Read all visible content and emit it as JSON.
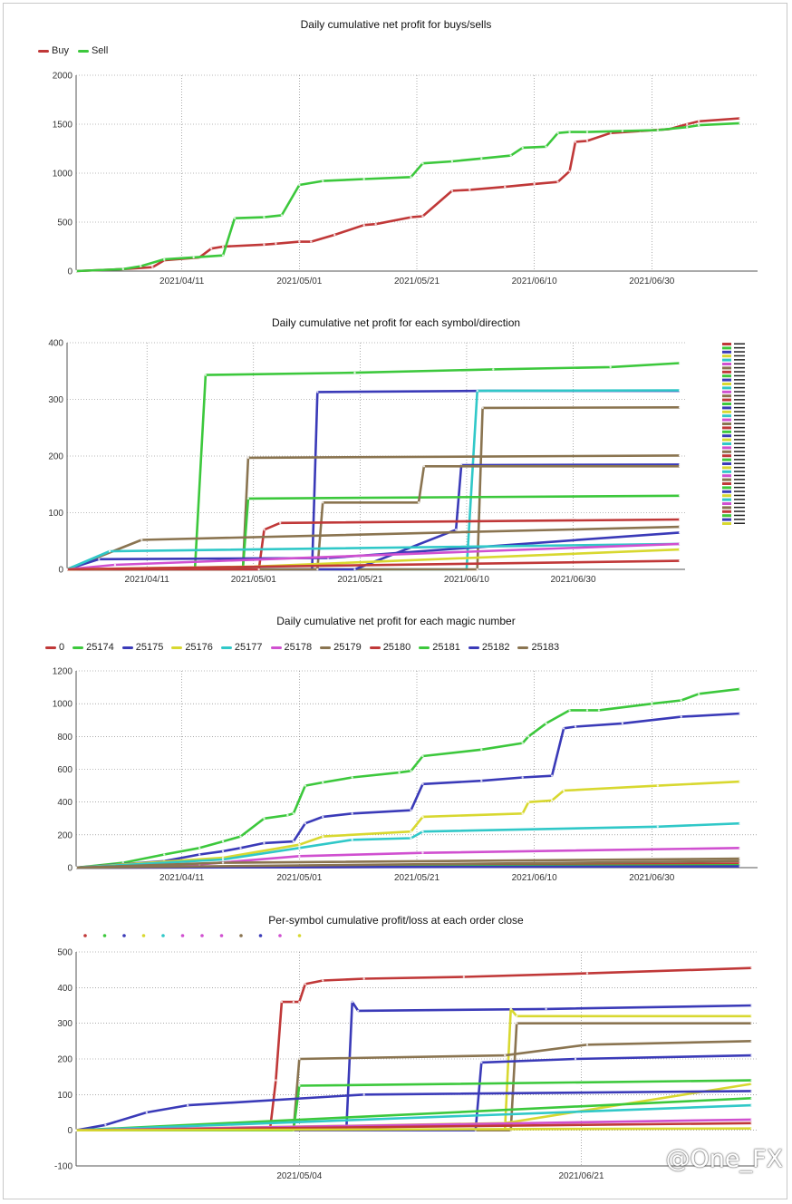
{
  "watermark": "@One_FX",
  "chart_data": [
    {
      "type": "line",
      "title": "Daily cumulative net profit for buys/sells",
      "legend_placement": "top-left",
      "grid": true,
      "xlabel": "",
      "ylabel": "",
      "x_tick_labels": [
        "2021/04/11",
        "2021/05/01",
        "2021/05/21",
        "2021/06/10",
        "2021/06/30"
      ],
      "x_range": [
        "2021/03/24",
        "2021/07/18"
      ],
      "ylim": [
        0,
        2000
      ],
      "y_ticks": [
        0,
        500,
        1000,
        1500,
        2000
      ],
      "series": [
        {
          "name": "Buy",
          "color": "#c03838",
          "x": [
            "2021/03/24",
            "2021/04/01",
            "2021/04/06",
            "2021/04/08",
            "2021/04/14",
            "2021/04/16",
            "2021/04/18",
            "2021/04/25",
            "2021/04/27",
            "2021/05/01",
            "2021/05/03",
            "2021/05/07",
            "2021/05/12",
            "2021/05/14",
            "2021/05/20",
            "2021/05/22",
            "2021/05/27",
            "2021/05/30",
            "2021/06/05",
            "2021/06/10",
            "2021/06/14",
            "2021/06/16",
            "2021/06/17",
            "2021/06/19",
            "2021/06/23",
            "2021/06/28",
            "2021/07/03",
            "2021/07/06",
            "2021/07/08",
            "2021/07/15"
          ],
          "values": [
            0,
            20,
            40,
            110,
            140,
            230,
            250,
            270,
            280,
            300,
            300,
            370,
            470,
            480,
            550,
            560,
            820,
            830,
            860,
            890,
            910,
            1020,
            1320,
            1330,
            1410,
            1430,
            1450,
            1500,
            1530,
            1560
          ]
        },
        {
          "name": "Sell",
          "color": "#3cc83c",
          "x": [
            "2021/03/24",
            "2021/04/01",
            "2021/04/04",
            "2021/04/08",
            "2021/04/13",
            "2021/04/18",
            "2021/04/20",
            "2021/04/25",
            "2021/04/28",
            "2021/05/01",
            "2021/05/05",
            "2021/05/12",
            "2021/05/20",
            "2021/05/22",
            "2021/05/27",
            "2021/06/01",
            "2021/06/06",
            "2021/06/08",
            "2021/06/12",
            "2021/06/14",
            "2021/06/16",
            "2021/06/19",
            "2021/06/25",
            "2021/07/01",
            "2021/07/06",
            "2021/07/08",
            "2021/07/15"
          ],
          "values": [
            0,
            20,
            50,
            120,
            140,
            160,
            540,
            550,
            570,
            880,
            920,
            940,
            960,
            1100,
            1120,
            1150,
            1180,
            1260,
            1270,
            1410,
            1420,
            1420,
            1430,
            1440,
            1470,
            1490,
            1510
          ]
        }
      ]
    },
    {
      "type": "line",
      "title": "Daily cumulative net profit for each symbol/direction",
      "legend_placement": "right",
      "grid": true,
      "xlabel": "",
      "ylabel": "",
      "x_tick_labels": [
        "2021/04/11",
        "2021/05/01",
        "2021/05/21",
        "2021/06/10",
        "2021/06/30"
      ],
      "x_range": [
        "2021/03/27",
        "2021/07/21"
      ],
      "ylim": [
        0,
        400
      ],
      "y_ticks": [
        0,
        100,
        200,
        300,
        400
      ],
      "series": [
        {
          "color": "#3cc83c",
          "x": [
            "2021/03/27",
            "2021/04/20",
            "2021/04/22",
            "2021/05/20",
            "2021/06/15",
            "2021/07/07",
            "2021/07/20"
          ],
          "values": [
            0,
            0,
            343,
            347,
            353,
            357,
            364
          ]
        },
        {
          "color": "#3a3ab8",
          "x": [
            "2021/03/27",
            "2021/05/12",
            "2021/05/13",
            "2021/06/14",
            "2021/07/20"
          ],
          "values": [
            0,
            0,
            313,
            315,
            315
          ]
        },
        {
          "color": "#30c8c8",
          "x": [
            "2021/03/27",
            "2021/06/10",
            "2021/06/12",
            "2021/07/20"
          ],
          "values": [
            0,
            0,
            315,
            316
          ]
        },
        {
          "color": "#8a7450",
          "x": [
            "2021/03/27",
            "2021/06/12",
            "2021/06/13",
            "2021/07/20"
          ],
          "values": [
            0,
            0,
            285,
            286
          ]
        },
        {
          "color": "#8a7450",
          "x": [
            "2021/03/27",
            "2021/04/29",
            "2021/04/30",
            "2021/07/20"
          ],
          "values": [
            0,
            0,
            197,
            201
          ]
        },
        {
          "color": "#3a3ab8",
          "x": [
            "2021/03/27",
            "2021/05/20",
            "2021/06/08",
            "2021/06/09",
            "2021/07/20"
          ],
          "values": [
            0,
            0,
            70,
            184,
            185
          ]
        },
        {
          "color": "#3cc83c",
          "x": [
            "2021/03/27",
            "2021/04/29",
            "2021/04/30",
            "2021/07/20"
          ],
          "values": [
            0,
            0,
            125,
            130
          ]
        },
        {
          "color": "#8a7450",
          "x": [
            "2021/03/27",
            "2021/05/13",
            "2021/05/14",
            "2021/06/01",
            "2021/06/02",
            "2021/07/20"
          ],
          "values": [
            0,
            0,
            118,
            118,
            182,
            182
          ]
        },
        {
          "color": "#c03838",
          "x": [
            "2021/03/27",
            "2021/05/02",
            "2021/05/03",
            "2021/05/06",
            "2021/07/20"
          ],
          "values": [
            0,
            0,
            70,
            82,
            88
          ]
        },
        {
          "color": "#8a7450",
          "x": [
            "2021/03/27",
            "2021/04/10",
            "2021/07/20"
          ],
          "values": [
            0,
            52,
            75
          ]
        },
        {
          "color": "#3a3ab8",
          "x": [
            "2021/03/27",
            "2021/04/02",
            "2021/05/15",
            "2021/07/20"
          ],
          "values": [
            0,
            18,
            20,
            65
          ]
        },
        {
          "color": "#30c8c8",
          "x": [
            "2021/03/27",
            "2021/04/04",
            "2021/07/20"
          ],
          "values": [
            0,
            32,
            45
          ]
        },
        {
          "color": "#d050d0",
          "x": [
            "2021/03/27",
            "2021/04/05",
            "2021/07/20"
          ],
          "values": [
            0,
            8,
            45
          ]
        },
        {
          "color": "#d8d830",
          "x": [
            "2021/03/27",
            "2021/05/01",
            "2021/07/20"
          ],
          "values": [
            0,
            5,
            35
          ]
        },
        {
          "color": "#c03838",
          "x": [
            "2021/03/27",
            "2021/07/20"
          ],
          "values": [
            0,
            15
          ]
        }
      ]
    },
    {
      "type": "line",
      "title": "Daily cumulative net profit for each magic number",
      "legend_placement": "top-left",
      "grid": true,
      "xlabel": "",
      "ylabel": "",
      "x_tick_labels": [
        "2021/04/11",
        "2021/05/01",
        "2021/05/21",
        "2021/06/10",
        "2021/06/30"
      ],
      "x_range": [
        "2021/03/24",
        "2021/07/18"
      ],
      "ylim": [
        0,
        1200
      ],
      "y_ticks": [
        0,
        200,
        400,
        600,
        800,
        1000,
        1200
      ],
      "series": [
        {
          "name": "0",
          "color": "#c03838",
          "x": [
            "2021/03/24",
            "2021/07/15"
          ],
          "values": [
            0,
            10
          ]
        },
        {
          "name": "25174",
          "color": "#3cc83c",
          "x": [
            "2021/03/24",
            "2021/04/01",
            "2021/04/08",
            "2021/04/14",
            "2021/04/18",
            "2021/04/21",
            "2021/04/25",
            "2021/04/29",
            "2021/04/30",
            "2021/05/02",
            "2021/05/05",
            "2021/05/10",
            "2021/05/18",
            "2021/05/20",
            "2021/05/22",
            "2021/06/01",
            "2021/06/08",
            "2021/06/09",
            "2021/06/12",
            "2021/06/16",
            "2021/06/19",
            "2021/06/21",
            "2021/06/30",
            "2021/07/05",
            "2021/07/08",
            "2021/07/15"
          ],
          "values": [
            0,
            30,
            80,
            120,
            160,
            190,
            300,
            320,
            330,
            500,
            520,
            550,
            580,
            590,
            680,
            720,
            760,
            800,
            880,
            960,
            960,
            960,
            1000,
            1020,
            1060,
            1090
          ]
        },
        {
          "name": "25175",
          "color": "#3a3ab8",
          "x": [
            "2021/03/24",
            "2021/04/08",
            "2021/04/14",
            "2021/04/18",
            "2021/04/21",
            "2021/04/25",
            "2021/04/30",
            "2021/05/02",
            "2021/05/05",
            "2021/05/10",
            "2021/05/20",
            "2021/05/22",
            "2021/06/01",
            "2021/06/08",
            "2021/06/13",
            "2021/06/15",
            "2021/06/17",
            "2021/06/25",
            "2021/07/05",
            "2021/07/15"
          ],
          "values": [
            0,
            40,
            80,
            100,
            120,
            150,
            160,
            270,
            310,
            330,
            350,
            510,
            530,
            550,
            560,
            850,
            860,
            880,
            920,
            940
          ]
        },
        {
          "name": "25176",
          "color": "#d8d830",
          "x": [
            "2021/03/24",
            "2021/04/18",
            "2021/05/01",
            "2021/05/05",
            "2021/05/20",
            "2021/05/22",
            "2021/06/08",
            "2021/06/09",
            "2021/06/13",
            "2021/06/15",
            "2021/07/01",
            "2021/07/15"
          ],
          "values": [
            0,
            60,
            140,
            190,
            220,
            310,
            330,
            400,
            410,
            470,
            500,
            525
          ]
        },
        {
          "name": "25177",
          "color": "#30c8c8",
          "x": [
            "2021/03/24",
            "2021/04/18",
            "2021/05/01",
            "2021/05/10",
            "2021/05/20",
            "2021/05/22",
            "2021/07/01",
            "2021/07/15"
          ],
          "values": [
            0,
            50,
            120,
            170,
            180,
            220,
            250,
            270
          ]
        },
        {
          "name": "25178",
          "color": "#d050d0",
          "x": [
            "2021/03/24",
            "2021/04/14",
            "2021/05/01",
            "2021/05/22",
            "2021/07/15"
          ],
          "values": [
            0,
            20,
            70,
            90,
            120
          ]
        },
        {
          "name": "25179",
          "color": "#8a7450",
          "x": [
            "2021/03/24",
            "2021/04/18",
            "2021/07/15"
          ],
          "values": [
            0,
            30,
            55
          ]
        },
        {
          "name": "25180",
          "color": "#c03838",
          "x": [
            "2021/03/24",
            "2021/07/15"
          ],
          "values": [
            0,
            25
          ]
        },
        {
          "name": "25181",
          "color": "#3cc83c",
          "x": [
            "2021/03/24",
            "2021/07/15"
          ],
          "values": [
            0,
            15
          ]
        },
        {
          "name": "25182",
          "color": "#3a3ab8",
          "x": [
            "2021/03/24",
            "2021/07/15"
          ],
          "values": [
            0,
            8
          ]
        },
        {
          "name": "25183",
          "color": "#8a7450",
          "x": [
            "2021/03/24",
            "2021/07/15"
          ],
          "values": [
            0,
            40
          ]
        }
      ]
    },
    {
      "type": "line",
      "title": "Per-symbol cumulative profit/loss at each order close",
      "legend_placement": "top-left",
      "legend_colors": [
        "#c03838",
        "#3cc83c",
        "#3a3ab8",
        "#d8d830",
        "#30c8c8",
        "#d050d0",
        "#d050d0",
        "#d050d0",
        "#8a7450",
        "#3a3ab8",
        "#d050d0",
        "#d8d830"
      ],
      "grid": true,
      "xlabel": "",
      "ylabel": "",
      "x_tick_labels": [
        "2021/05/04",
        "2021/06/21"
      ],
      "x_range": [
        "2021/03/27",
        "2021/07/21"
      ],
      "ylim": [
        -100,
        500
      ],
      "y_ticks": [
        -100,
        0,
        100,
        200,
        300,
        400,
        500
      ],
      "series": [
        {
          "color": "#c03838",
          "x": [
            "2021/03/27",
            "2021/04/29",
            "2021/04/30",
            "2021/05/01",
            "2021/05/03",
            "2021/05/04",
            "2021/05/05",
            "2021/05/08",
            "2021/05/15",
            "2021/06/01",
            "2021/06/22",
            "2021/07/20"
          ],
          "values": [
            0,
            0,
            140,
            360,
            360,
            360,
            410,
            420,
            425,
            430,
            440,
            455
          ]
        },
        {
          "color": "#3a3ab8",
          "x": [
            "2021/03/27",
            "2021/05/12",
            "2021/05/13",
            "2021/05/14",
            "2021/06/15",
            "2021/07/20"
          ],
          "values": [
            0,
            0,
            360,
            335,
            340,
            350
          ]
        },
        {
          "color": "#d8d830",
          "x": [
            "2021/03/27",
            "2021/06/08",
            "2021/06/09",
            "2021/06/10",
            "2021/07/20"
          ],
          "values": [
            0,
            0,
            340,
            320,
            320
          ]
        },
        {
          "color": "#8a7450",
          "x": [
            "2021/03/27",
            "2021/06/09",
            "2021/06/10",
            "2021/07/20"
          ],
          "values": [
            0,
            0,
            300,
            300
          ]
        },
        {
          "color": "#8a7450",
          "x": [
            "2021/03/27",
            "2021/05/03",
            "2021/05/04",
            "2021/06/08",
            "2021/06/22",
            "2021/07/20"
          ],
          "values": [
            0,
            0,
            200,
            210,
            240,
            250
          ]
        },
        {
          "color": "#3a3ab8",
          "x": [
            "2021/03/27",
            "2021/06/03",
            "2021/06/04",
            "2021/06/20",
            "2021/07/20"
          ],
          "values": [
            0,
            0,
            190,
            200,
            210
          ]
        },
        {
          "color": "#3cc83c",
          "x": [
            "2021/03/27",
            "2021/05/03",
            "2021/05/04",
            "2021/07/20"
          ],
          "values": [
            0,
            0,
            125,
            140
          ]
        },
        {
          "color": "#d8d830",
          "x": [
            "2021/03/27",
            "2021/06/08",
            "2021/07/20"
          ],
          "values": [
            0,
            20,
            130
          ]
        },
        {
          "color": "#3a3ab8",
          "x": [
            "2021/03/27",
            "2021/04/01",
            "2021/04/08",
            "2021/04/15",
            "2021/05/15",
            "2021/07/20"
          ],
          "values": [
            0,
            15,
            50,
            70,
            100,
            110
          ]
        },
        {
          "color": "#3cc83c",
          "x": [
            "2021/03/27",
            "2021/07/20"
          ],
          "values": [
            0,
            90
          ]
        },
        {
          "color": "#30c8c8",
          "x": [
            "2021/03/27",
            "2021/07/20"
          ],
          "values": [
            0,
            70
          ]
        },
        {
          "color": "#d050d0",
          "x": [
            "2021/03/27",
            "2021/07/20"
          ],
          "values": [
            0,
            30
          ]
        },
        {
          "color": "#c03838",
          "x": [
            "2021/03/27",
            "2021/07/20"
          ],
          "values": [
            0,
            20
          ]
        },
        {
          "color": "#d8d830",
          "x": [
            "2021/03/27",
            "2021/07/20"
          ],
          "values": [
            0,
            5
          ]
        }
      ]
    }
  ]
}
